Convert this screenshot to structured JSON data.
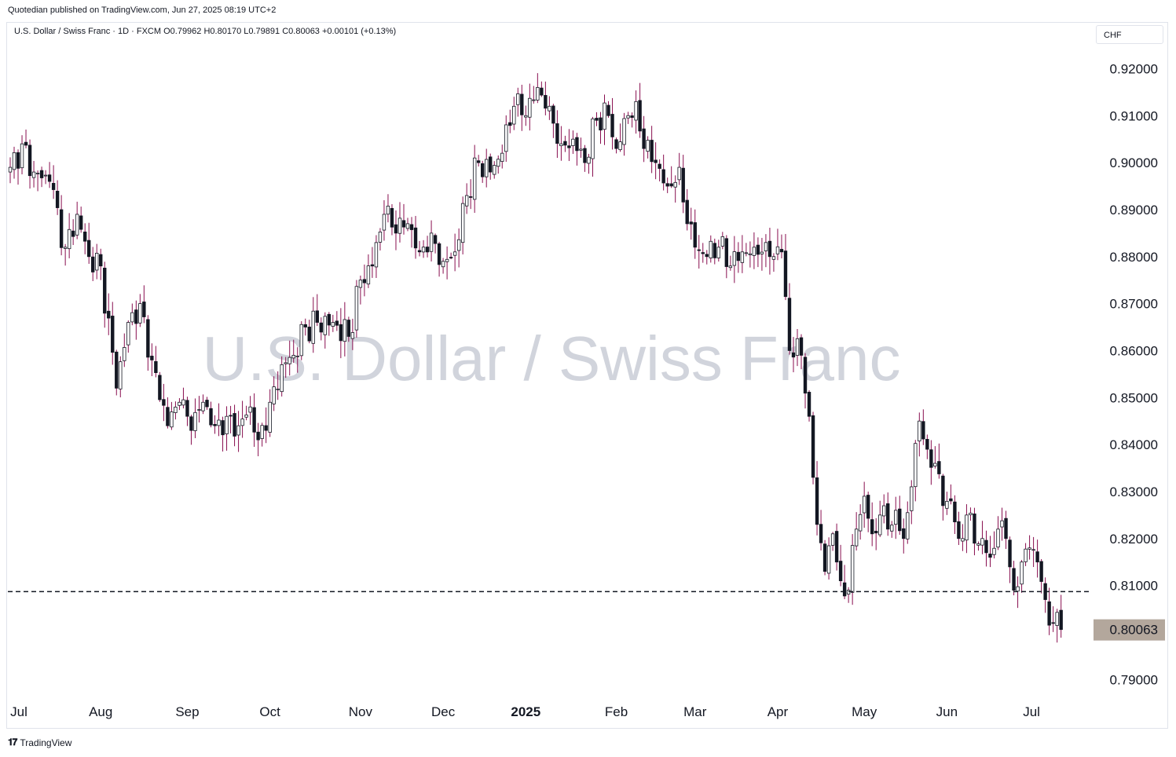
{
  "header": {
    "published": "Quotedian published on TradingView.com, Jun 27, 2025 08:19 UTC+2"
  },
  "legend": {
    "symbol": "U.S. Dollar / Swiss Franc · 1D · FXCM",
    "open": "O0.79962",
    "high": "H0.80170",
    "low": "L0.79891",
    "close": "C0.80063",
    "change": "+0.00101 (+0.13%)"
  },
  "currency": "CHF",
  "watermark": "U.S. Dollar / Swiss Franc",
  "last_price_label": "0.80063",
  "footer": {
    "brand": "TradingView",
    "logo": "tradingview-logo-icon"
  },
  "colors": {
    "candle_body": "#131722",
    "wick_color": "#880e4f",
    "watermark": "#d1d4dc",
    "price_badge": "#b3a79c"
  },
  "chart_data": {
    "type": "candlestick",
    "title": "U.S. Dollar / Swiss Franc",
    "timeframe": "1D",
    "source": "FXCM",
    "ylim": [
      0.7862,
      0.9296
    ],
    "y_axis_labels": [
      "0.92000",
      "0.91000",
      "0.90000",
      "0.89000",
      "0.88000",
      "0.87000",
      "0.86000",
      "0.85000",
      "0.84000",
      "0.83000",
      "0.82000",
      "0.81000",
      "0.79000"
    ],
    "x_axis_labels": [
      "Jul",
      "Aug",
      "Sep",
      "Oct",
      "Nov",
      "Dec",
      "2025",
      "Feb",
      "Mar",
      "Apr",
      "May",
      "Jun",
      "Jul"
    ],
    "x_axis_bold": [
      false,
      false,
      false,
      false,
      false,
      false,
      true,
      false,
      false,
      false,
      false,
      false,
      false
    ],
    "support_level": 0.8087,
    "last_close": 0.80063,
    "month_starts": [
      {
        "month": "Jul",
        "start_index": 0
      },
      {
        "month": "Aug",
        "start_index": 23
      },
      {
        "month": "Sep",
        "start_index": 45
      },
      {
        "month": "Oct",
        "start_index": 66
      },
      {
        "month": "Nov",
        "start_index": 89
      },
      {
        "month": "Dec",
        "start_index": 110
      },
      {
        "month": "2025",
        "start_index": 131
      },
      {
        "month": "Feb",
        "start_index": 154
      },
      {
        "month": "Mar",
        "start_index": 174
      },
      {
        "month": "Apr",
        "start_index": 195
      },
      {
        "month": "May",
        "start_index": 217
      },
      {
        "month": "Jun",
        "start_index": 238
      }
    ],
    "anchors": [
      [
        0,
        0.899
      ],
      [
        3,
        0.904
      ],
      [
        6,
        0.898
      ],
      [
        10,
        0.896
      ],
      [
        14,
        0.882
      ],
      [
        17,
        0.889
      ],
      [
        20,
        0.88
      ],
      [
        23,
        0.878
      ],
      [
        27,
        0.852
      ],
      [
        30,
        0.866
      ],
      [
        33,
        0.87
      ],
      [
        36,
        0.858
      ],
      [
        40,
        0.844
      ],
      [
        43,
        0.849
      ],
      [
        46,
        0.843
      ],
      [
        49,
        0.849
      ],
      [
        52,
        0.844
      ],
      [
        55,
        0.846
      ],
      [
        58,
        0.844
      ],
      [
        61,
        0.848
      ],
      [
        63,
        0.841
      ],
      [
        66,
        0.849
      ],
      [
        69,
        0.857
      ],
      [
        72,
        0.859
      ],
      [
        75,
        0.865
      ],
      [
        78,
        0.866
      ],
      [
        82,
        0.866
      ],
      [
        86,
        0.863
      ],
      [
        89,
        0.875
      ],
      [
        92,
        0.878
      ],
      [
        95,
        0.889
      ],
      [
        98,
        0.885
      ],
      [
        101,
        0.887
      ],
      [
        104,
        0.881
      ],
      [
        107,
        0.885
      ],
      [
        110,
        0.879
      ],
      [
        113,
        0.881
      ],
      [
        116,
        0.893
      ],
      [
        119,
        0.9
      ],
      [
        122,
        0.898
      ],
      [
        125,
        0.902
      ],
      [
        128,
        0.912
      ],
      [
        131,
        0.91
      ],
      [
        134,
        0.916
      ],
      [
        137,
        0.912
      ],
      [
        140,
        0.904
      ],
      [
        143,
        0.905
      ],
      [
        146,
        0.9
      ],
      [
        149,
        0.909
      ],
      [
        152,
        0.91
      ],
      [
        154,
        0.903
      ],
      [
        157,
        0.91
      ],
      [
        159,
        0.913
      ],
      [
        161,
        0.903
      ],
      [
        164,
        0.9
      ],
      [
        167,
        0.895
      ],
      [
        170,
        0.899
      ],
      [
        172,
        0.887
      ],
      [
        174,
        0.882
      ],
      [
        177,
        0.88
      ],
      [
        180,
        0.882
      ],
      [
        183,
        0.878
      ],
      [
        186,
        0.881
      ],
      [
        189,
        0.882
      ],
      [
        192,
        0.883
      ],
      [
        194,
        0.88
      ],
      [
        196,
        0.881
      ],
      [
        198,
        0.86
      ],
      [
        201,
        0.859
      ],
      [
        203,
        0.846
      ],
      [
        205,
        0.823
      ],
      [
        207,
        0.813
      ],
      [
        209,
        0.821
      ],
      [
        211,
        0.811
      ],
      [
        213,
        0.809
      ],
      [
        215,
        0.822
      ],
      [
        217,
        0.829
      ],
      [
        219,
        0.821
      ],
      [
        221,
        0.825
      ],
      [
        223,
        0.822
      ],
      [
        225,
        0.826
      ],
      [
        227,
        0.82
      ],
      [
        229,
        0.831
      ],
      [
        231,
        0.845
      ],
      [
        233,
        0.839
      ],
      [
        235,
        0.836
      ],
      [
        237,
        0.827
      ],
      [
        239,
        0.828
      ],
      [
        241,
        0.82
      ],
      [
        243,
        0.825
      ],
      [
        245,
        0.819
      ],
      [
        247,
        0.82
      ],
      [
        249,
        0.816
      ],
      [
        251,
        0.822
      ],
      [
        253,
        0.82
      ],
      [
        255,
        0.809
      ],
      [
        257,
        0.815
      ],
      [
        259,
        0.818
      ],
      [
        261,
        0.815
      ],
      [
        263,
        0.807
      ],
      [
        265,
        0.802
      ],
      [
        267,
        0.80063
      ]
    ]
  }
}
